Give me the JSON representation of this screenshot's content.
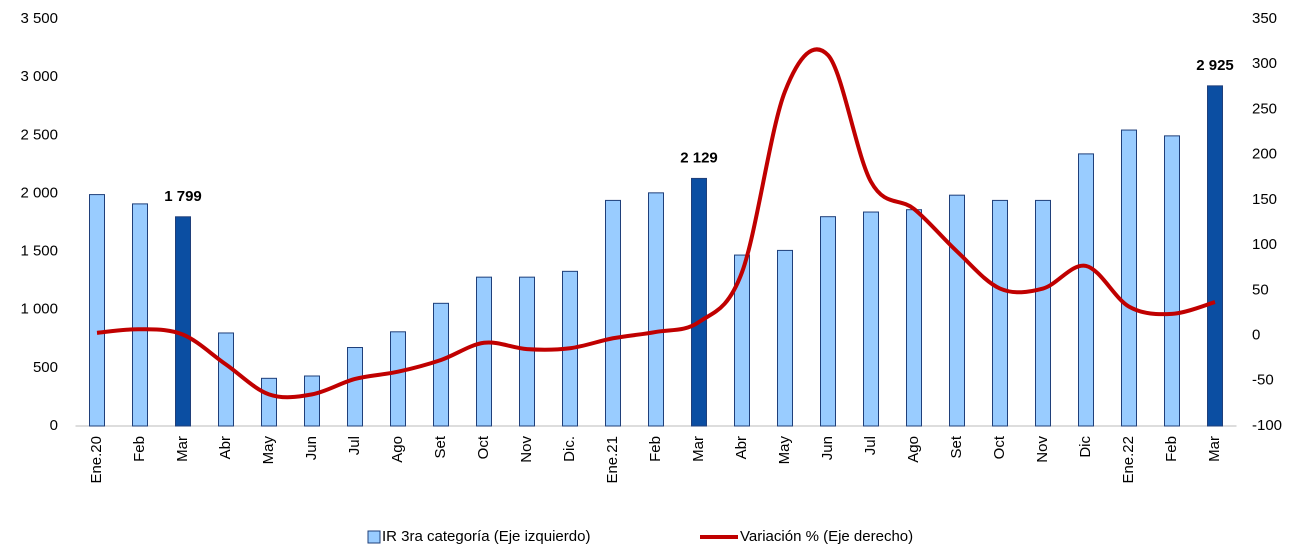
{
  "chart_data": {
    "type": "bar_line",
    "categories": [
      "Ene.20",
      "Feb",
      "Mar",
      "Abr",
      "May",
      "Jun",
      "Jul",
      "Ago",
      "Set",
      "Oct",
      "Nov",
      "Dic.",
      "Ene.21",
      "Feb",
      "Mar",
      "Abr",
      "May",
      "Jun",
      "Jul",
      "Ago",
      "Set",
      "Oct",
      "Nov",
      "Dic",
      "Ene.22",
      "Feb",
      "Mar"
    ],
    "series": [
      {
        "name": "IR 3ra categoría (Eje izquierdo)",
        "color": "#99ccff",
        "colors": [
          "#99ccff",
          "#99ccff",
          "#0b4ea2",
          "#99ccff",
          "#99ccff",
          "#99ccff",
          "#99ccff",
          "#99ccff",
          "#99ccff",
          "#99ccff",
          "#99ccff",
          "#99ccff",
          "#99ccff",
          "#99ccff",
          "#0b4ea2",
          "#99ccff",
          "#99ccff",
          "#99ccff",
          "#99ccff",
          "#99ccff",
          "#99ccff",
          "#99ccff",
          "#99ccff",
          "#99ccff",
          "#99ccff",
          "#99ccff",
          "#0b4ea2"
        ],
        "values": [
          1990,
          1910,
          1799,
          800,
          410,
          430,
          675,
          810,
          1055,
          1280,
          1280,
          1330,
          1940,
          2005,
          2129,
          1470,
          1510,
          1800,
          1840,
          1860,
          1985,
          1940,
          1940,
          2340,
          2545,
          2495,
          2925
        ],
        "value_labels": [
          null,
          null,
          "1 799",
          null,
          null,
          null,
          null,
          null,
          null,
          null,
          null,
          null,
          null,
          null,
          "2 129",
          null,
          null,
          null,
          null,
          null,
          null,
          null,
          null,
          null,
          null,
          null,
          "2 925"
        ]
      },
      {
        "name": "Variación % (Eje derecho)",
        "color": "#c00000",
        "axis": "y2",
        "values": [
          3,
          7,
          1,
          -32,
          -65,
          -65,
          -48,
          -40,
          -27,
          -8,
          -15,
          -14,
          -3,
          4,
          15,
          70,
          270,
          310,
          170,
          140,
          93,
          52,
          52,
          77,
          32,
          24,
          37
        ]
      }
    ],
    "ylim": [
      0,
      3500
    ],
    "yticks": [
      0,
      500,
      {
        "value": 1000,
        "label": "1 000"
      },
      {
        "value": 1500,
        "label": "1 500"
      },
      {
        "value": 2000,
        "label": "2 000"
      },
      {
        "value": 2500,
        "label": "2 500"
      },
      {
        "value": 3000,
        "label": "3 000"
      },
      {
        "value": 3500,
        "label": "3 500"
      }
    ],
    "y2lim": [
      -100,
      350
    ],
    "y2ticks": [
      -100,
      -50,
      0,
      50,
      100,
      150,
      200,
      250,
      300,
      350
    ],
    "legend": "bottom"
  }
}
